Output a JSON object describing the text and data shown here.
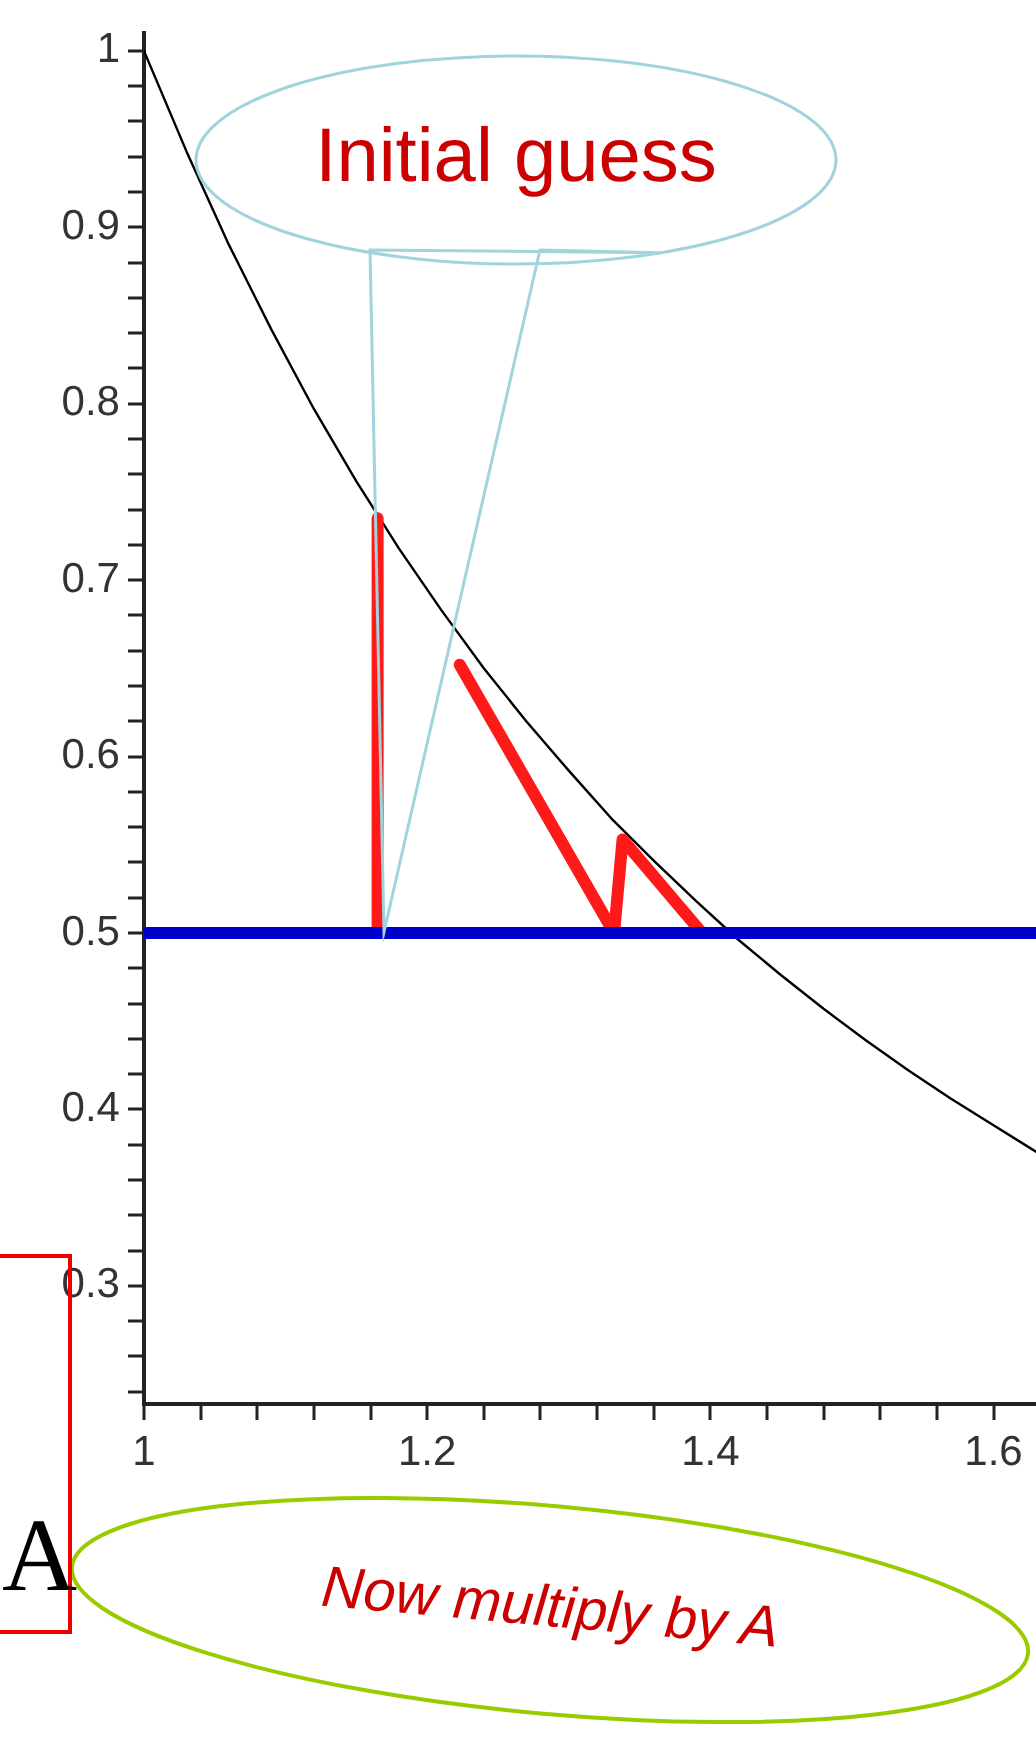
{
  "chart_data": {
    "type": "line",
    "xlim": [
      1,
      1.63
    ],
    "ylim": [
      0.233,
      1.01
    ],
    "xticks": [
      1,
      {
        "value": 1.04,
        "label": null
      },
      {
        "value": 1.08,
        "label": null
      },
      {
        "value": 1.12,
        "label": null
      },
      {
        "value": 1.16,
        "label": null
      },
      1.2,
      {
        "value": 1.24,
        "label": null
      },
      {
        "value": 1.28,
        "label": null
      },
      {
        "value": 1.32,
        "label": null
      },
      {
        "value": 1.36,
        "label": null
      },
      1.4,
      {
        "value": 1.44,
        "label": null
      },
      {
        "value": 1.48,
        "label": null
      },
      {
        "value": 1.52,
        "label": null
      },
      {
        "value": 1.56,
        "label": null
      },
      1.6
    ],
    "yticks": [
      {
        "value": 0.24,
        "label": null
      },
      {
        "value": 0.26,
        "label": null
      },
      {
        "value": 0.28,
        "label": null
      },
      0.3,
      {
        "value": 0.32,
        "label": null
      },
      {
        "value": 0.34,
        "label": null
      },
      {
        "value": 0.36,
        "label": null
      },
      {
        "value": 0.38,
        "label": null
      },
      0.4,
      {
        "value": 0.42,
        "label": null
      },
      {
        "value": 0.44,
        "label": null
      },
      {
        "value": 0.46,
        "label": null
      },
      {
        "value": 0.48,
        "label": null
      },
      0.5,
      {
        "value": 0.52,
        "label": null
      },
      {
        "value": 0.54,
        "label": null
      },
      {
        "value": 0.56,
        "label": null
      },
      {
        "value": 0.58,
        "label": null
      },
      0.6,
      {
        "value": 0.62,
        "label": null
      },
      {
        "value": 0.64,
        "label": null
      },
      {
        "value": 0.66,
        "label": null
      },
      {
        "value": 0.68,
        "label": null
      },
      0.7,
      {
        "value": 0.72,
        "label": null
      },
      {
        "value": 0.74,
        "label": null
      },
      {
        "value": 0.76,
        "label": null
      },
      {
        "value": 0.78,
        "label": null
      },
      0.8,
      {
        "value": 0.82,
        "label": null
      },
      {
        "value": 0.84,
        "label": null
      },
      {
        "value": 0.86,
        "label": null
      },
      {
        "value": 0.88,
        "label": null
      },
      0.9,
      {
        "value": 0.92,
        "label": null
      },
      {
        "value": 0.94,
        "label": null
      },
      {
        "value": 0.96,
        "label": null
      },
      {
        "value": 0.98,
        "label": null
      },
      1
    ],
    "series": [
      {
        "color": "#000000",
        "x": [
          1,
          1.03,
          1.06,
          1.09,
          1.12,
          1.15,
          1.18,
          1.21,
          1.24,
          1.27,
          1.3,
          1.33,
          1.36,
          1.39,
          1.42,
          1.45,
          1.48,
          1.51,
          1.54,
          1.57,
          1.6,
          1.63
        ],
        "values": [
          1.0,
          0.943,
          0.89,
          0.842,
          0.797,
          0.756,
          0.718,
          0.683,
          0.65,
          0.62,
          0.592,
          0.565,
          0.541,
          0.518,
          0.496,
          0.476,
          0.457,
          0.439,
          0.422,
          0.406,
          0.391,
          0.376
        ]
      },
      {
        "color": "#ff1a1a",
        "x": [
          1.165,
          1.165
        ],
        "values": [
          0.5,
          0.735
        ]
      },
      {
        "color": "#ff1a1a",
        "x": [
          1.223,
          1.332,
          1.338,
          1.394
        ],
        "values": [
          0.652,
          0.5,
          0.553,
          0.5
        ]
      }
    ],
    "ref_lines": [
      {
        "axis": "y",
        "value": 0.5,
        "color": "#0000cc"
      }
    ],
    "annotations": [
      "Initial guess",
      "Now multiply by A",
      "A"
    ],
    "marker": "none",
    "line_style": "solid",
    "grid": false,
    "legend": false
  }
}
